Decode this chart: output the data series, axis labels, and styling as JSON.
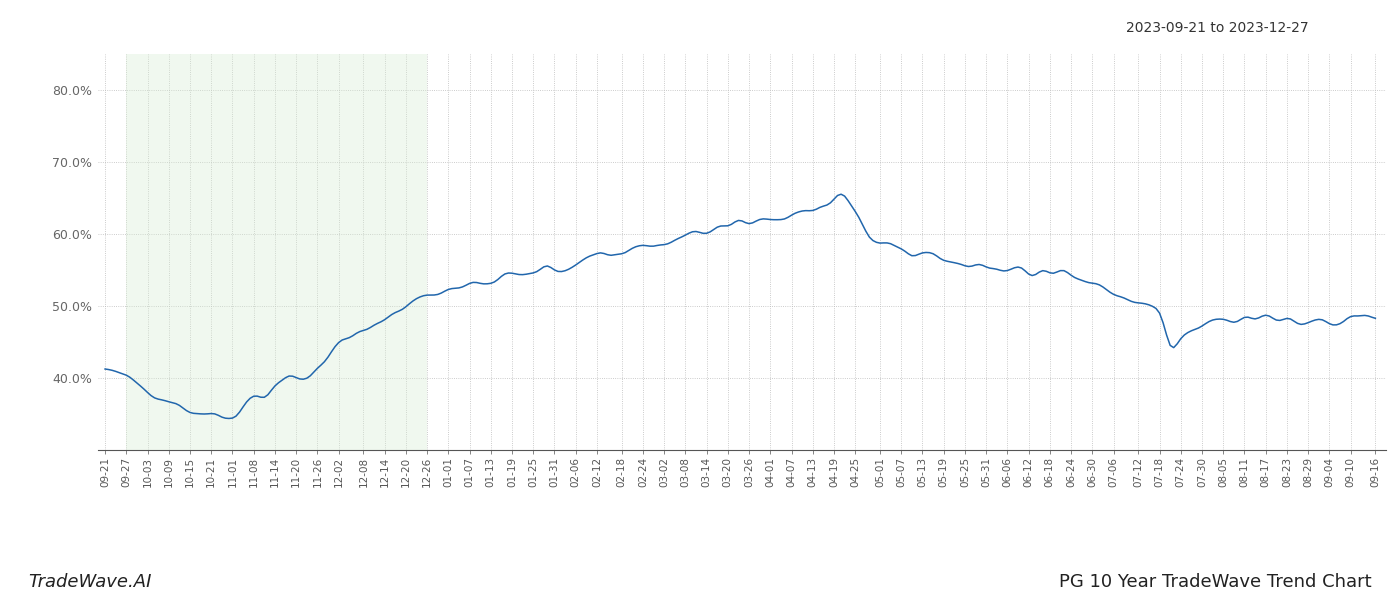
{
  "title_top_right": "2023-09-21 to 2023-12-27",
  "title_bottom": "PG 10 Year TradeWave Trend Chart",
  "watermark_left": "TradeWave.AI",
  "ylim": [
    30.0,
    85.0
  ],
  "yticks": [
    40.0,
    50.0,
    60.0,
    70.0,
    80.0
  ],
  "line_color": "#2166ac",
  "highlight_color": "#d6ecd2",
  "highlight_alpha": 0.35,
  "grid_color": "#bbbbbb",
  "background_color": "#ffffff",
  "x_labels": [
    "09-21",
    "09-27",
    "10-03",
    "10-09",
    "10-15",
    "10-21",
    "11-01",
    "11-08",
    "11-14",
    "11-20",
    "11-26",
    "12-02",
    "12-08",
    "12-14",
    "12-20",
    "12-26",
    "01-01",
    "01-07",
    "01-13",
    "01-19",
    "01-25",
    "01-31",
    "02-06",
    "02-12",
    "02-18",
    "02-24",
    "03-02",
    "03-08",
    "03-14",
    "03-20",
    "03-26",
    "04-01",
    "04-07",
    "04-13",
    "04-19",
    "04-25",
    "05-01",
    "05-07",
    "05-13",
    "05-19",
    "05-25",
    "05-31",
    "06-06",
    "06-12",
    "06-18",
    "06-24",
    "06-30",
    "07-06",
    "07-12",
    "07-18",
    "07-24",
    "07-30",
    "08-05",
    "08-11",
    "08-17",
    "08-23",
    "08-29",
    "09-04",
    "09-10",
    "09-16"
  ],
  "highlight_start_label": "09-27",
  "highlight_end_label": "12-26",
  "n_data_points": 360,
  "seed": 42
}
